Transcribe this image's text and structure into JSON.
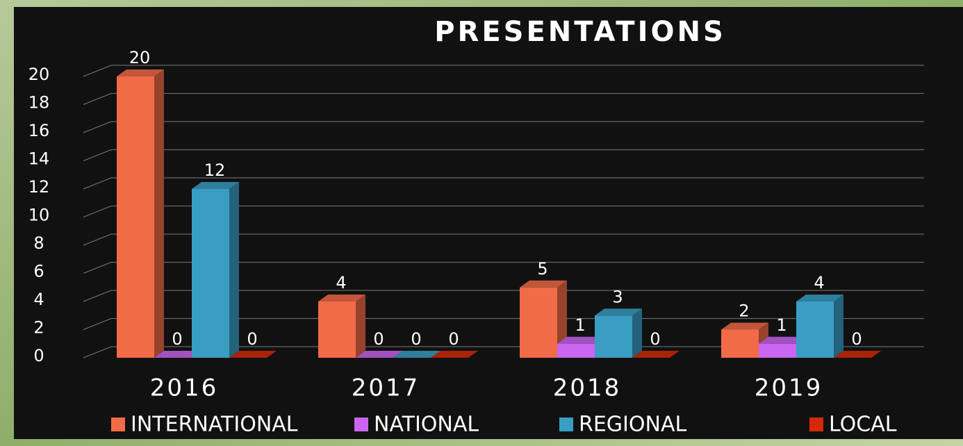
{
  "chart_data": {
    "type": "bar3d",
    "title": "PRESENTATIONS",
    "categories": [
      "2016",
      "2017",
      "2018",
      "2019"
    ],
    "series": [
      {
        "name": "INTERNATIONAL",
        "color": "#f26b47",
        "values": [
          20,
          4,
          5,
          2
        ]
      },
      {
        "name": "NATIONAL",
        "color": "#c965f0",
        "values": [
          0,
          0,
          1,
          1
        ]
      },
      {
        "name": "REGIONAL",
        "color": "#3a9dc4",
        "values": [
          12,
          0,
          3,
          4
        ]
      },
      {
        "name": "LOCAL",
        "color": "#d42a0a",
        "values": [
          0,
          0,
          0,
          0
        ]
      }
    ],
    "ylim": [
      0,
      20
    ],
    "yticks": [
      0,
      2,
      4,
      6,
      8,
      10,
      12,
      14,
      16,
      18,
      20
    ],
    "grid": true,
    "legend": "bottom"
  }
}
